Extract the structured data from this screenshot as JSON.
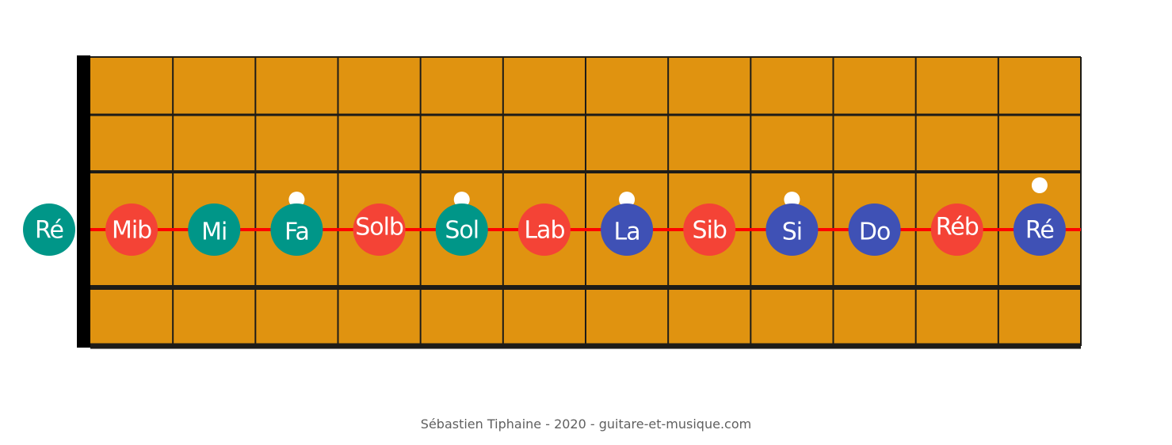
{
  "open_note": {
    "label": "Ré",
    "degree": "root"
  },
  "fret_notes": [
    {
      "fret": 1,
      "label": "Mib",
      "degree": "outside",
      "marker": false
    },
    {
      "fret": 2,
      "label": "Mi",
      "degree": "scale",
      "marker": false
    },
    {
      "fret": 3,
      "label": "Fa",
      "degree": "scale",
      "marker": true
    },
    {
      "fret": 4,
      "label": "Solb",
      "degree": "outside",
      "marker": false
    },
    {
      "fret": 5,
      "label": "Sol",
      "degree": "scale",
      "marker": true
    },
    {
      "fret": 6,
      "label": "Lab",
      "degree": "outside",
      "marker": false
    },
    {
      "fret": 7,
      "label": "La",
      "degree": "chord",
      "marker": true
    },
    {
      "fret": 8,
      "label": "Sib",
      "degree": "outside",
      "marker": false
    },
    {
      "fret": 9,
      "label": "Si",
      "degree": "chord",
      "marker": true
    },
    {
      "fret": 10,
      "label": "Do",
      "degree": "chord",
      "marker": false
    },
    {
      "fret": 11,
      "label": "Réb",
      "degree": "outside",
      "marker": false
    },
    {
      "fret": 12,
      "label": "Ré",
      "degree": "chord",
      "marker": true
    }
  ],
  "credit": "Sébastien Tiphaine - 2020 - guitare-et-musique.com",
  "colors": {
    "fretboard": "#e09310",
    "fret_lines": "#1e1c18",
    "nut": "#000000",
    "highlighted_string": "#ff0000",
    "root": "#009688",
    "scale": "#009688",
    "outside": "#f44336",
    "chord": "#3f51b5",
    "marker": "#ffffff",
    "credit_text": "#606060"
  }
}
